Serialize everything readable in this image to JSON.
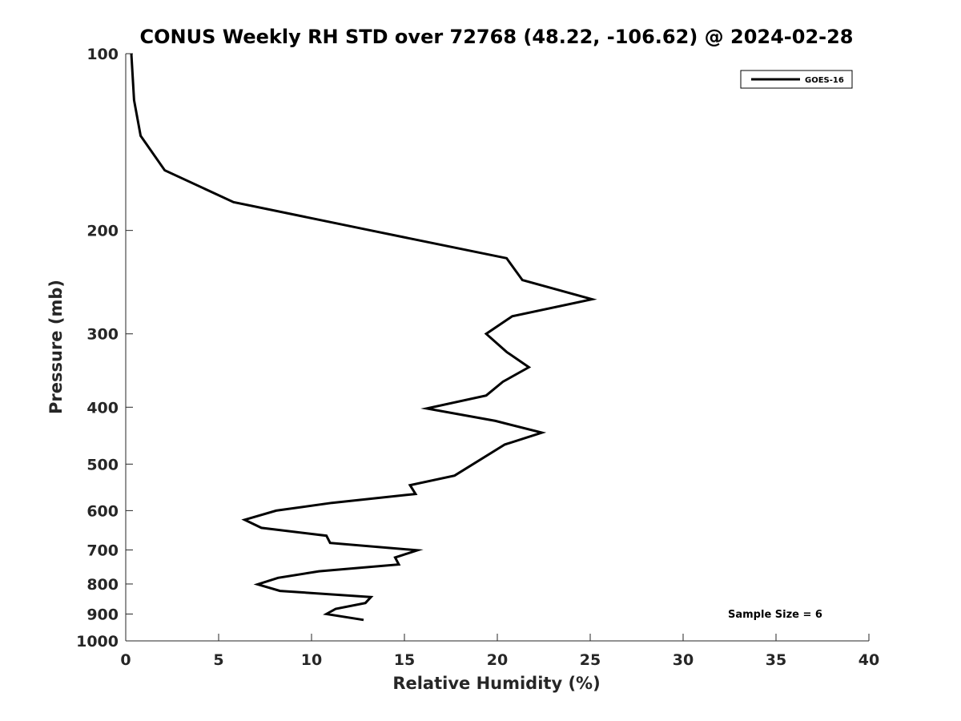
{
  "chart_data": {
    "type": "line",
    "title": "CONUS Weekly RH STD over 72768 (48.22, -106.62) @ 2024-02-28",
    "xlabel": "Relative Humidity (%)",
    "ylabel": "Pressure (mb)",
    "xlim": [
      0,
      40
    ],
    "ylim": [
      100,
      1000
    ],
    "y_scale": "log",
    "y_reversed": true,
    "grid": false,
    "legend_position": "top-right",
    "x_ticks": [
      "0",
      "5",
      "10",
      "15",
      "20",
      "25",
      "30",
      "35",
      "40"
    ],
    "y_ticks": [
      "100",
      "200",
      "300",
      "400",
      "500",
      "600",
      "700",
      "800",
      "900",
      "1000"
    ],
    "series": [
      {
        "name": "GOES-16",
        "color": "#000000",
        "points": [
          {
            "x": 0.3,
            "y": 100
          },
          {
            "x": 0.45,
            "y": 120
          },
          {
            "x": 0.8,
            "y": 138
          },
          {
            "x": 2.1,
            "y": 158
          },
          {
            "x": 5.8,
            "y": 179
          },
          {
            "x": 13.2,
            "y": 200
          },
          {
            "x": 20.5,
            "y": 223
          },
          {
            "x": 21.35,
            "y": 243
          },
          {
            "x": 25.1,
            "y": 262
          },
          {
            "x": 20.8,
            "y": 280
          },
          {
            "x": 19.4,
            "y": 300
          },
          {
            "x": 20.5,
            "y": 322
          },
          {
            "x": 21.7,
            "y": 342
          },
          {
            "x": 20.3,
            "y": 362
          },
          {
            "x": 19.4,
            "y": 382
          },
          {
            "x": 16.2,
            "y": 402
          },
          {
            "x": 19.9,
            "y": 422
          },
          {
            "x": 22.4,
            "y": 442
          },
          {
            "x": 20.4,
            "y": 463
          },
          {
            "x": 17.7,
            "y": 523
          },
          {
            "x": 15.3,
            "y": 543
          },
          {
            "x": 15.6,
            "y": 562
          },
          {
            "x": 11.1,
            "y": 582
          },
          {
            "x": 8.1,
            "y": 600
          },
          {
            "x": 6.4,
            "y": 622
          },
          {
            "x": 7.3,
            "y": 642
          },
          {
            "x": 10.8,
            "y": 662
          },
          {
            "x": 11.0,
            "y": 681
          },
          {
            "x": 15.7,
            "y": 701
          },
          {
            "x": 14.5,
            "y": 721
          },
          {
            "x": 14.7,
            "y": 741
          },
          {
            "x": 10.4,
            "y": 761
          },
          {
            "x": 8.2,
            "y": 781
          },
          {
            "x": 7.1,
            "y": 801
          },
          {
            "x": 8.3,
            "y": 822
          },
          {
            "x": 13.2,
            "y": 842
          },
          {
            "x": 12.9,
            "y": 862
          },
          {
            "x": 11.3,
            "y": 882
          },
          {
            "x": 10.8,
            "y": 900
          },
          {
            "x": 12.8,
            "y": 921
          }
        ]
      }
    ],
    "annotations": [
      "Sample Size = 6"
    ]
  }
}
